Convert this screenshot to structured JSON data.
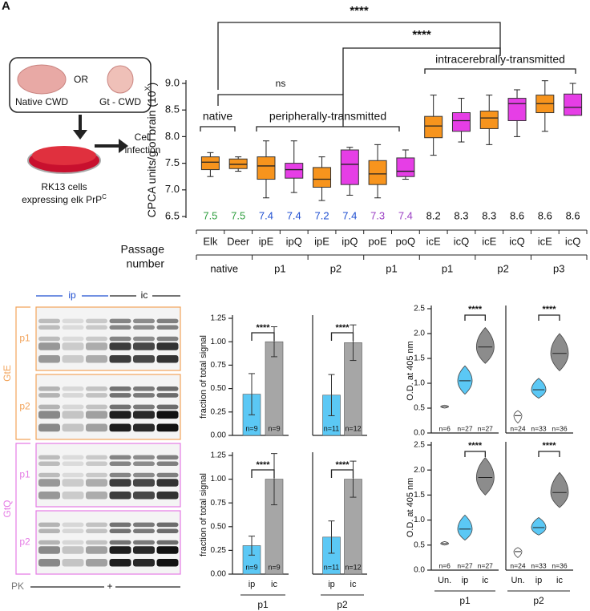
{
  "panel_label": "A",
  "diagram": {
    "source_left": "Native CWD",
    "or": "OR",
    "source_right": "Gt - CWD",
    "step": [
      "Cell",
      "infection"
    ],
    "cells": "RK13 cells",
    "cells_2": "expressing elk PrP",
    "cells_sup": "C"
  },
  "blot": {
    "lanes_left": "ip",
    "lanes_right": "ic",
    "groups": [
      {
        "name": "GtE",
        "rows": [
          "p1",
          "p2"
        ]
      },
      {
        "name": "GtQ",
        "rows": [
          "p1",
          "p2"
        ]
      }
    ],
    "treatment": "PK",
    "treatment_sign": "+"
  },
  "chart_data": [
    {
      "type": "box",
      "ylabel": "CPCA units/g of brain (10",
      "ylabel_sup": "X",
      "ylabel_end": ")",
      "categories": [
        "Elk",
        "Deer",
        "ipE",
        "ipQ",
        "ipE",
        "ipQ",
        "poE",
        "poQ",
        "icE",
        "icQ",
        "icE",
        "icQ",
        "icE",
        "icQ"
      ],
      "values": [
        7.5,
        7.5,
        7.4,
        7.4,
        7.2,
        7.4,
        7.3,
        7.4,
        8.2,
        8.3,
        8.3,
        8.6,
        8.6,
        8.6
      ],
      "value_label_colors": [
        "#2e9e3e",
        "#2e9e3e",
        "#1f4fd1",
        "#1f4fd1",
        "#1f4fd1",
        "#1f4fd1",
        "#9b3fc4",
        "#9b3fc4",
        "#111111",
        "#111111",
        "#111111",
        "#111111",
        "#111111",
        "#111111"
      ],
      "colors": [
        "#f7941d",
        "#f7941d",
        "#f7941d",
        "#e63ee6",
        "#f7941d",
        "#e63ee6",
        "#f7941d",
        "#e63ee6",
        "#f7941d",
        "#e63ee6",
        "#f7941d",
        "#e63ee6",
        "#f7941d",
        "#e63ee6"
      ],
      "q1": [
        7.38,
        7.4,
        7.2,
        7.22,
        7.05,
        7.1,
        7.1,
        7.25,
        7.98,
        8.1,
        8.15,
        8.3,
        8.45,
        8.4
      ],
      "median": [
        7.52,
        7.48,
        7.45,
        7.38,
        7.2,
        7.48,
        7.3,
        7.35,
        8.2,
        8.3,
        8.35,
        8.62,
        8.62,
        8.55
      ],
      "q3": [
        7.62,
        7.58,
        7.62,
        7.5,
        7.42,
        7.75,
        7.55,
        7.6,
        8.38,
        8.45,
        8.48,
        8.72,
        8.78,
        8.8
      ],
      "whisker_low": [
        7.25,
        7.35,
        6.85,
        6.95,
        6.8,
        6.9,
        6.85,
        7.2,
        7.65,
        7.9,
        7.85,
        8.0,
        8.1,
        8.4
      ],
      "whisker_high": [
        7.7,
        7.62,
        7.92,
        7.92,
        7.62,
        7.8,
        7.85,
        7.75,
        8.78,
        8.72,
        8.78,
        8.88,
        9.05,
        9.0
      ],
      "ylim": [
        6.5,
        9.0
      ],
      "yticks": [
        6.5,
        {
          "value": 7,
          "label": "7.0"
        },
        7.5,
        {
          "value": 8,
          "label": "8.0"
        },
        8.5,
        {
          "value": 9,
          "label": "9.0"
        }
      ],
      "groups": [
        "native",
        "peripherally-transmitted",
        "intracerebrally-transmitted"
      ],
      "comparisons": [
        "****",
        "****",
        "ns"
      ],
      "passage_title": [
        "Passage",
        "number"
      ],
      "passages": [
        "native",
        "p1",
        "p2",
        "p1",
        "p1",
        "p2",
        "p3"
      ]
    },
    {
      "type": "bar",
      "ylabel": "fraction of total signal",
      "categories": [
        null,
        null
      ],
      "values": [
        0.44,
        1.0
      ],
      "errors": [
        0.22,
        0.16
      ],
      "n_labels": [
        "n=9",
        "n=9"
      ],
      "colors": [
        "#5bc8f5",
        "#a6a6a6"
      ],
      "ylim": [
        0,
        1.25
      ],
      "yticks": [
        {
          "value": 0,
          "label": "0.00"
        },
        {
          "value": 0.25,
          "label": "0.25"
        },
        {
          "value": 0.5,
          "label": "0.50"
        },
        {
          "value": 0.75,
          "label": "0.75"
        },
        {
          "value": 1,
          "label": "1.00"
        },
        {
          "value": 1.25,
          "label": "1.25"
        }
      ],
      "significance": "****"
    },
    {
      "type": "bar",
      "categories": [
        null,
        null
      ],
      "values": [
        0.43,
        0.99
      ],
      "errors": [
        0.22,
        0.19
      ],
      "n_labels": [
        "n=11",
        "n=12"
      ],
      "colors": [
        "#5bc8f5",
        "#a6a6a6"
      ],
      "ylim": [
        0,
        1.25
      ],
      "significance": "****"
    },
    {
      "type": "bar",
      "ylabel": "fraction of total signal",
      "categories": [
        "ip",
        "ic"
      ],
      "values": [
        0.3,
        1.0
      ],
      "errors": [
        0.1,
        0.27
      ],
      "n_labels": [
        "n=9",
        "n=9"
      ],
      "colors": [
        "#5bc8f5",
        "#a6a6a6"
      ],
      "ylim": [
        0,
        1.25
      ],
      "yticks": [
        {
          "value": 0,
          "label": "0.00"
        },
        {
          "value": 0.25,
          "label": "0.25"
        },
        {
          "value": 0.5,
          "label": "0.50"
        },
        {
          "value": 0.75,
          "label": "0.75"
        },
        {
          "value": 1,
          "label": "1.00"
        },
        {
          "value": 1.25,
          "label": "1.25"
        }
      ],
      "significance": "****",
      "group": "p1"
    },
    {
      "type": "bar",
      "categories": [
        "ip",
        "ic"
      ],
      "values": [
        0.39,
        1.0
      ],
      "errors": [
        0.17,
        0.19
      ],
      "n_labels": [
        "n=11",
        "n=12"
      ],
      "colors": [
        "#5bc8f5",
        "#a6a6a6"
      ],
      "ylim": [
        0,
        1.25
      ],
      "significance": "****",
      "group": "p2"
    },
    {
      "type": "violin",
      "ylabel": "O.D. at 405 nm",
      "categories": [
        null,
        null,
        null
      ],
      "values": [
        0.53,
        1.05,
        1.73
      ],
      "lows": [
        0.5,
        0.78,
        1.4
      ],
      "highs": [
        0.56,
        1.35,
        2.12
      ],
      "n_labels": [
        "n=6",
        "n=27",
        "n=27"
      ],
      "colors": [
        "#ffffff",
        "#5bc8f5",
        "#8c8c8c"
      ],
      "ylim": [
        0,
        2.5
      ],
      "yticks": [
        {
          "value": 0,
          "label": "0.0"
        },
        0.5,
        {
          "value": 1,
          "label": "1.0"
        },
        1.5,
        {
          "value": 2,
          "label": "2.0"
        },
        2.5
      ],
      "significance": "****"
    },
    {
      "type": "violin",
      "categories": [
        null,
        null,
        null
      ],
      "values": [
        0.35,
        0.87,
        1.6
      ],
      "lows": [
        0.2,
        0.7,
        1.25
      ],
      "highs": [
        0.45,
        1.1,
        2.0
      ],
      "n_labels": [
        "n=24",
        "n=33",
        "n=36"
      ],
      "colors": [
        "#ffffff",
        "#5bc8f5",
        "#8c8c8c"
      ],
      "ylim": [
        0,
        2.5
      ],
      "significance": "****"
    },
    {
      "type": "violin",
      "ylabel": "O.D. at 405 nm",
      "categories": [
        "Un.",
        "ip",
        "ic"
      ],
      "values": [
        0.53,
        0.82,
        1.85
      ],
      "lows": [
        0.5,
        0.6,
        1.5
      ],
      "highs": [
        0.57,
        1.1,
        2.25
      ],
      "n_labels": [
        "n=6",
        "n=27",
        "n=27"
      ],
      "colors": [
        "#ffffff",
        "#5bc8f5",
        "#8c8c8c"
      ],
      "ylim": [
        0,
        2.5
      ],
      "yticks": [
        {
          "value": 0,
          "label": "0.0"
        },
        0.5,
        {
          "value": 1,
          "label": "1.0"
        },
        1.5,
        {
          "value": 2,
          "label": "2.0"
        },
        2.5
      ],
      "significance": "****",
      "group": "p1"
    },
    {
      "type": "violin",
      "categories": [
        "Un.",
        "ip",
        "ic"
      ],
      "values": [
        0.37,
        0.85,
        1.55
      ],
      "lows": [
        0.25,
        0.7,
        1.25
      ],
      "highs": [
        0.45,
        1.05,
        1.95
      ],
      "n_labels": [
        "n=24",
        "n=33",
        "n=36"
      ],
      "colors": [
        "#ffffff",
        "#5bc8f5",
        "#8c8c8c"
      ],
      "ylim": [
        0,
        2.5
      ],
      "significance": "****",
      "group": "p2"
    }
  ]
}
